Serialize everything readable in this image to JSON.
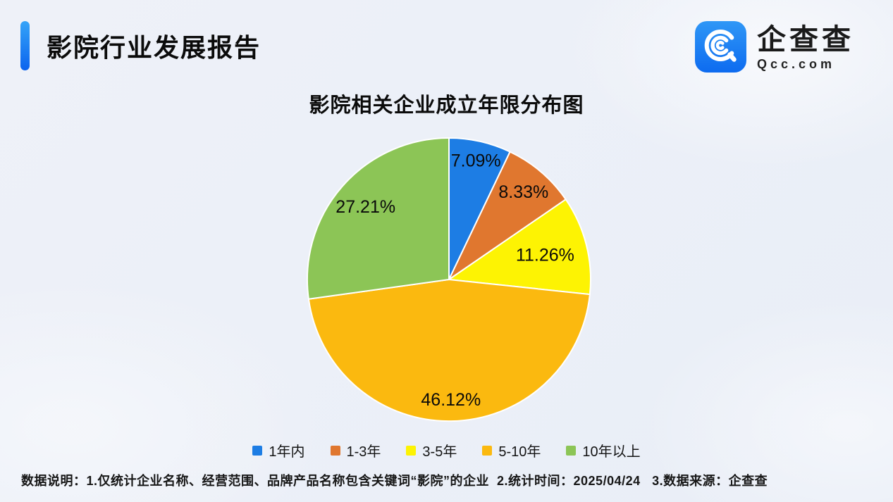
{
  "header": {
    "title": "影院行业发展报告",
    "accent_color": "#1273eb"
  },
  "logo": {
    "name": "企查查",
    "domain": "Qcc.com",
    "icon": "qcc-magnifier-icon",
    "icon_color": "#1577f2"
  },
  "chart_data": {
    "type": "pie",
    "title": "影院相关企业成立年限分布图",
    "categories": [
      "1年内",
      "1-3年",
      "3-5年",
      "5-10年",
      "10年以上"
    ],
    "values": [
      7.09,
      8.33,
      11.26,
      46.12,
      27.21
    ],
    "labels": [
      "7.09%",
      "8.33%",
      "11.26%",
      "46.12%",
      "27.21%"
    ],
    "colors": [
      "#1d7de4",
      "#e0772f",
      "#fdf303",
      "#fbb90f",
      "#8cc556"
    ],
    "start_angle_deg": 0,
    "direction": "clockwise",
    "legend_position": "bottom",
    "label_radius": [
      0.86,
      0.81,
      0.7,
      0.85,
      0.78
    ],
    "slice_border_color": "#ffffff"
  },
  "footer": {
    "text": "数据说明：1.仅统计企业名称、经营范围、品牌产品名称包含关键词“影院”的企业  2.统计时间：2025/04/24   3.数据来源：企查查"
  }
}
